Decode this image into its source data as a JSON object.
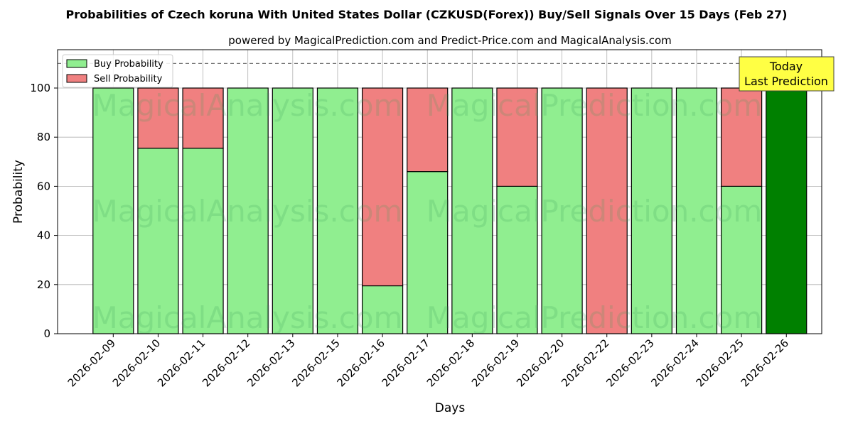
{
  "chart_data": {
    "type": "bar",
    "stacked": true,
    "title": "Probabilities of Czech koruna With United States Dollar (CZKUSD(Forex)) Buy/Sell Signals Over 15 Days (Feb 27)",
    "subtitle": "powered by MagicalPrediction.com and Predict-Price.com and MagicalAnalysis.com",
    "xlabel": "Days",
    "ylabel": "Probability",
    "ylim": [
      0,
      115
    ],
    "yticks": [
      0,
      20,
      40,
      60,
      80,
      100
    ],
    "reference_line": 110,
    "grid": true,
    "legend_position": "top-left",
    "categories": [
      "2026-02-09",
      "2026-02-10",
      "2026-02-11",
      "2026-02-12",
      "2026-02-13",
      "2026-02-15",
      "2026-02-16",
      "2026-02-17",
      "2026-02-18",
      "2026-02-19",
      "2026-02-20",
      "2026-02-22",
      "2026-02-23",
      "2026-02-24",
      "2026-02-25",
      "2026-02-26"
    ],
    "series": [
      {
        "name": "Buy Probability",
        "color": "#90ee90",
        "values": [
          100,
          75.5,
          75.5,
          100,
          100,
          100,
          19.5,
          66,
          100,
          60,
          100,
          0,
          100,
          100,
          60,
          100
        ]
      },
      {
        "name": "Sell Probability",
        "color": "#f08080",
        "values": [
          0,
          24.5,
          24.5,
          0,
          0,
          0,
          80.5,
          34,
          0,
          40,
          0,
          100,
          0,
          0,
          40,
          0
        ]
      }
    ],
    "highlight": {
      "category": "2026-02-26",
      "color": "#008000"
    },
    "annotation": {
      "lines": [
        "Today",
        "Last Prediction"
      ],
      "bg": "#ffff44"
    },
    "watermarks": [
      "MagicalAnalysis.com",
      "MagicalPrediction.com"
    ]
  }
}
